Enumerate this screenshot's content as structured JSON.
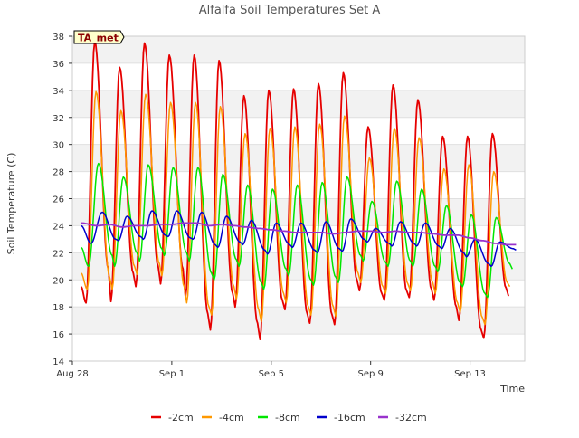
{
  "chart_data": {
    "type": "line",
    "title": "Alfalfa Soil Temperatures Set A",
    "xlabel": "Time",
    "ylabel": "Soil Temperature (C)",
    "site_label": "TA_met",
    "x_start": "2023-08-28",
    "x_end": "2023-09-15",
    "x_ticks": [
      {
        "label": "Aug 28",
        "day": 0
      },
      {
        "label": "Sep 1",
        "day": 4
      },
      {
        "label": "Sep 5",
        "day": 8
      },
      {
        "label": "Sep 9",
        "day": 12
      },
      {
        "label": "Sep 13",
        "day": 16
      }
    ],
    "ylim": [
      14,
      38
    ],
    "yticks": [
      14,
      16,
      18,
      20,
      22,
      24,
      26,
      28,
      30,
      32,
      34,
      36,
      38
    ],
    "grid": "horizontal alternating bands",
    "legend_position": "bottom",
    "series": [
      {
        "name": "-2cm",
        "color": "#e60000",
        "width": 1.8,
        "points": [
          [
            0.35,
            19.5
          ],
          [
            0.55,
            18.3
          ],
          [
            0.9,
            37.6
          ],
          [
            1.45,
            20.8
          ],
          [
            1.55,
            18.4
          ],
          [
            1.9,
            35.7
          ],
          [
            2.45,
            20.5
          ],
          [
            2.55,
            19.5
          ],
          [
            2.9,
            37.5
          ],
          [
            3.45,
            21.0
          ],
          [
            3.55,
            19.7
          ],
          [
            3.9,
            36.6
          ],
          [
            4.45,
            20.8
          ],
          [
            4.55,
            18.7
          ],
          [
            4.9,
            36.6
          ],
          [
            5.45,
            17.5
          ],
          [
            5.55,
            16.3
          ],
          [
            5.9,
            36.2
          ],
          [
            6.45,
            19.0
          ],
          [
            6.55,
            18.0
          ],
          [
            6.9,
            33.6
          ],
          [
            7.45,
            16.8
          ],
          [
            7.55,
            15.6
          ],
          [
            7.9,
            34.0
          ],
          [
            8.45,
            18.5
          ],
          [
            8.55,
            17.8
          ],
          [
            8.9,
            34.1
          ],
          [
            9.45,
            17.5
          ],
          [
            9.55,
            16.8
          ],
          [
            9.9,
            34.5
          ],
          [
            10.45,
            17.4
          ],
          [
            10.55,
            16.7
          ],
          [
            10.9,
            35.3
          ],
          [
            11.45,
            20.0
          ],
          [
            11.55,
            19.2
          ],
          [
            11.9,
            31.3
          ],
          [
            12.45,
            19.0
          ],
          [
            12.55,
            18.5
          ],
          [
            12.9,
            34.4
          ],
          [
            13.45,
            19.2
          ],
          [
            13.55,
            18.7
          ],
          [
            13.9,
            33.3
          ],
          [
            14.45,
            19.3
          ],
          [
            14.55,
            18.5
          ],
          [
            14.9,
            30.6
          ],
          [
            15.45,
            18.0
          ],
          [
            15.55,
            17.0
          ],
          [
            15.9,
            30.6
          ],
          [
            16.45,
            16.3
          ],
          [
            16.55,
            15.7
          ],
          [
            16.9,
            30.8
          ],
          [
            17.45,
            19.4
          ],
          [
            17.55,
            18.8
          ]
        ]
      },
      {
        "name": "-4cm",
        "color": "#ff9900",
        "width": 1.5,
        "points": [
          [
            0.35,
            20.5
          ],
          [
            0.6,
            19.3
          ],
          [
            0.95,
            33.9
          ],
          [
            1.5,
            20.2
          ],
          [
            1.6,
            19.3
          ],
          [
            1.95,
            32.5
          ],
          [
            2.5,
            21.0
          ],
          [
            2.6,
            20.4
          ],
          [
            2.95,
            33.7
          ],
          [
            3.5,
            21.2
          ],
          [
            3.6,
            20.3
          ],
          [
            3.95,
            33.1
          ],
          [
            4.5,
            19.5
          ],
          [
            4.6,
            18.3
          ],
          [
            4.95,
            33.1
          ],
          [
            5.5,
            18.0
          ],
          [
            5.6,
            17.4
          ],
          [
            5.95,
            32.8
          ],
          [
            6.5,
            19.5
          ],
          [
            6.6,
            18.6
          ],
          [
            6.95,
            30.8
          ],
          [
            7.5,
            17.8
          ],
          [
            7.6,
            16.9
          ],
          [
            7.95,
            31.2
          ],
          [
            8.5,
            19.0
          ],
          [
            8.6,
            18.3
          ],
          [
            8.95,
            31.3
          ],
          [
            9.5,
            18.0
          ],
          [
            9.6,
            17.4
          ],
          [
            9.95,
            31.5
          ],
          [
            10.5,
            18.0
          ],
          [
            10.6,
            17.3
          ],
          [
            10.95,
            32.1
          ],
          [
            11.5,
            20.5
          ],
          [
            11.6,
            19.8
          ],
          [
            11.95,
            29.0
          ],
          [
            12.5,
            19.5
          ],
          [
            12.6,
            19.0
          ],
          [
            12.95,
            31.2
          ],
          [
            13.5,
            19.7
          ],
          [
            13.6,
            19.2
          ],
          [
            13.95,
            30.5
          ],
          [
            14.5,
            19.8
          ],
          [
            14.6,
            19.0
          ],
          [
            14.95,
            28.2
          ],
          [
            15.5,
            18.3
          ],
          [
            15.6,
            17.6
          ],
          [
            15.95,
            28.5
          ],
          [
            16.5,
            17.2
          ],
          [
            16.6,
            16.7
          ],
          [
            16.95,
            28.0
          ],
          [
            17.5,
            19.8
          ],
          [
            17.6,
            19.5
          ]
        ]
      },
      {
        "name": "-8cm",
        "color": "#00e600",
        "width": 1.5,
        "points": [
          [
            0.35,
            22.4
          ],
          [
            0.65,
            21.0
          ],
          [
            1.05,
            28.6
          ],
          [
            1.6,
            21.8
          ],
          [
            1.7,
            21.0
          ],
          [
            2.05,
            27.6
          ],
          [
            2.6,
            22.0
          ],
          [
            2.7,
            21.4
          ],
          [
            3.05,
            28.5
          ],
          [
            3.6,
            22.3
          ],
          [
            3.7,
            21.8
          ],
          [
            4.05,
            28.3
          ],
          [
            4.6,
            22.0
          ],
          [
            4.7,
            21.4
          ],
          [
            5.05,
            28.3
          ],
          [
            5.6,
            20.5
          ],
          [
            5.7,
            20.0
          ],
          [
            6.05,
            27.8
          ],
          [
            6.6,
            21.5
          ],
          [
            6.7,
            21.0
          ],
          [
            7.05,
            27.0
          ],
          [
            7.6,
            19.8
          ],
          [
            7.7,
            19.3
          ],
          [
            8.05,
            26.7
          ],
          [
            8.6,
            20.8
          ],
          [
            8.7,
            20.3
          ],
          [
            9.05,
            27.0
          ],
          [
            9.6,
            20.0
          ],
          [
            9.7,
            19.6
          ],
          [
            10.05,
            27.2
          ],
          [
            10.6,
            20.2
          ],
          [
            10.7,
            19.8
          ],
          [
            11.05,
            27.6
          ],
          [
            11.6,
            21.8
          ],
          [
            11.7,
            21.4
          ],
          [
            12.05,
            25.8
          ],
          [
            12.6,
            21.3
          ],
          [
            12.7,
            21.0
          ],
          [
            13.05,
            27.3
          ],
          [
            13.6,
            21.4
          ],
          [
            13.7,
            21.0
          ],
          [
            14.05,
            26.7
          ],
          [
            14.6,
            21.0
          ],
          [
            14.7,
            20.6
          ],
          [
            15.05,
            25.5
          ],
          [
            15.6,
            19.8
          ],
          [
            15.7,
            19.5
          ],
          [
            16.05,
            24.8
          ],
          [
            16.6,
            19.0
          ],
          [
            16.7,
            18.7
          ],
          [
            17.05,
            24.6
          ],
          [
            17.6,
            21.2
          ],
          [
            17.7,
            20.8
          ]
        ]
      },
      {
        "name": "-16cm",
        "color": "#0000cc",
        "width": 1.5,
        "points": [
          [
            0.35,
            24.0
          ],
          [
            0.75,
            22.7
          ],
          [
            1.2,
            25.0
          ],
          [
            1.75,
            23.0
          ],
          [
            1.85,
            22.9
          ],
          [
            2.2,
            24.7
          ],
          [
            2.75,
            23.2
          ],
          [
            2.85,
            23.0
          ],
          [
            3.2,
            25.1
          ],
          [
            3.75,
            23.3
          ],
          [
            3.85,
            23.2
          ],
          [
            4.2,
            25.1
          ],
          [
            4.75,
            23.1
          ],
          [
            4.85,
            23.0
          ],
          [
            5.2,
            25.0
          ],
          [
            5.75,
            22.6
          ],
          [
            5.85,
            22.4
          ],
          [
            6.2,
            24.7
          ],
          [
            6.75,
            22.8
          ],
          [
            6.85,
            22.6
          ],
          [
            7.2,
            24.4
          ],
          [
            7.75,
            22.2
          ],
          [
            7.85,
            21.9
          ],
          [
            8.2,
            24.2
          ],
          [
            8.75,
            22.6
          ],
          [
            8.85,
            22.4
          ],
          [
            9.2,
            24.2
          ],
          [
            9.75,
            22.2
          ],
          [
            9.85,
            22.0
          ],
          [
            10.2,
            24.3
          ],
          [
            10.75,
            22.3
          ],
          [
            10.85,
            22.1
          ],
          [
            11.2,
            24.5
          ],
          [
            11.75,
            23.0
          ],
          [
            11.85,
            22.8
          ],
          [
            12.2,
            23.8
          ],
          [
            12.75,
            22.7
          ],
          [
            12.85,
            22.5
          ],
          [
            13.2,
            24.3
          ],
          [
            13.75,
            22.7
          ],
          [
            13.85,
            22.5
          ],
          [
            14.2,
            24.2
          ],
          [
            14.75,
            22.5
          ],
          [
            14.85,
            22.3
          ],
          [
            15.2,
            23.8
          ],
          [
            15.75,
            22.0
          ],
          [
            15.85,
            21.7
          ],
          [
            16.2,
            23.0
          ],
          [
            16.75,
            21.2
          ],
          [
            16.85,
            21.0
          ],
          [
            17.2,
            22.8
          ],
          [
            17.75,
            22.3
          ],
          [
            17.85,
            22.2
          ]
        ]
      },
      {
        "name": "-32cm",
        "color": "#9933cc",
        "width": 1.8,
        "points": [
          [
            0.35,
            24.2
          ],
          [
            1.0,
            24.0
          ],
          [
            1.5,
            24.1
          ],
          [
            2.0,
            23.9
          ],
          [
            2.5,
            24.0
          ],
          [
            3.0,
            24.0
          ],
          [
            3.5,
            24.1
          ],
          [
            4.0,
            24.1
          ],
          [
            4.5,
            24.2
          ],
          [
            5.0,
            24.2
          ],
          [
            5.5,
            24.0
          ],
          [
            6.0,
            24.1
          ],
          [
            6.5,
            24.0
          ],
          [
            7.0,
            23.9
          ],
          [
            7.5,
            23.8
          ],
          [
            8.0,
            23.7
          ],
          [
            8.5,
            23.6
          ],
          [
            9.0,
            23.5
          ],
          [
            9.5,
            23.5
          ],
          [
            10.0,
            23.5
          ],
          [
            10.5,
            23.4
          ],
          [
            11.0,
            23.5
          ],
          [
            11.5,
            23.6
          ],
          [
            12.0,
            23.6
          ],
          [
            12.5,
            23.5
          ],
          [
            13.0,
            23.6
          ],
          [
            13.5,
            23.5
          ],
          [
            14.0,
            23.5
          ],
          [
            14.5,
            23.4
          ],
          [
            15.0,
            23.3
          ],
          [
            15.5,
            23.3
          ],
          [
            16.0,
            23.1
          ],
          [
            16.5,
            22.9
          ],
          [
            17.0,
            22.7
          ],
          [
            17.5,
            22.6
          ],
          [
            17.85,
            22.6
          ]
        ]
      }
    ]
  }
}
